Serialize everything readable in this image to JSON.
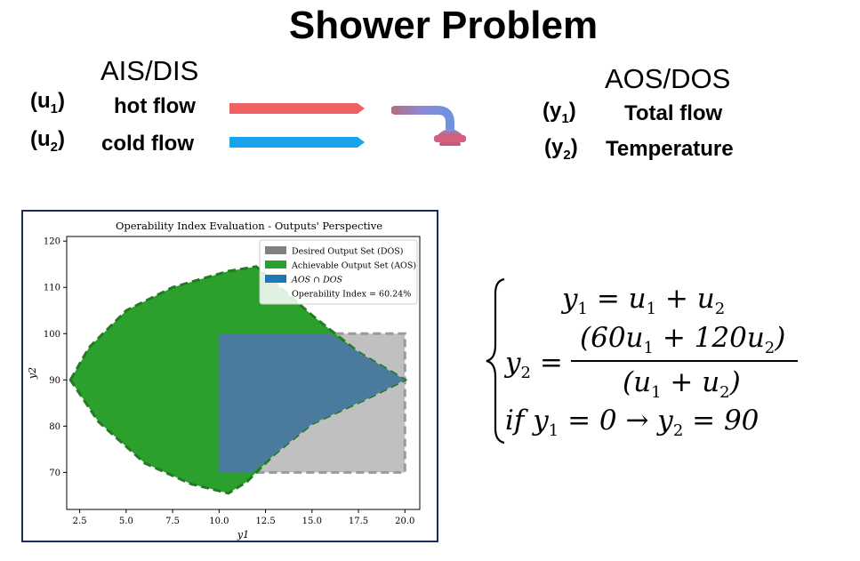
{
  "title": "Shower Problem",
  "inputs": {
    "header": "AIS/DIS",
    "items": [
      {
        "var": "(u1)",
        "var_base": "(u",
        "var_sub": "1",
        "var_close": ")",
        "label": "hot flow",
        "color": "#f06060"
      },
      {
        "var": "(u2)",
        "var_base": "(u",
        "var_sub": "2",
        "var_close": ")",
        "label": "cold flow",
        "color": "#1aa3ea"
      }
    ]
  },
  "outputs": {
    "header": "AOS/DOS",
    "items": [
      {
        "var": "(y1)",
        "var_base": "(y",
        "var_sub": "1",
        "var_close": ")",
        "label": "Total flow"
      },
      {
        "var": "(y2)",
        "var_base": "(y",
        "var_sub": "2",
        "var_close": ")",
        "label": "Temperature"
      }
    ]
  },
  "shower_icon": "shower-head-icon",
  "chart_data": {
    "type": "area",
    "title": "Operability Index Evaluation - Outputs' Perspective",
    "xlabel": "y1",
    "ylabel": "y2",
    "xlim": [
      1.8,
      20.8
    ],
    "ylim": [
      62,
      121
    ],
    "xticks": [
      "2.5",
      "5.0",
      "7.5",
      "10.0",
      "12.5",
      "15.0",
      "17.5",
      "20.0"
    ],
    "yticks": [
      "70",
      "80",
      "90",
      "100",
      "110",
      "120"
    ],
    "legend_position": "top-right",
    "legend": [
      {
        "label": "Desired Output Set (DOS)",
        "color": "#808080"
      },
      {
        "label": "Achievable Output Set (AOS)",
        "color": "#2ca02c"
      },
      {
        "label": "AOS ∩ DOS",
        "color": "#1f77b4"
      },
      {
        "label": "Operability Index = 60.24%",
        "color": null
      }
    ],
    "series": [
      {
        "name": "Desired Output Set (DOS)",
        "color": "#c0c0c0",
        "edge_color": "#9a9a9a",
        "points": [
          [
            10,
            70
          ],
          [
            20,
            70
          ],
          [
            20,
            100
          ],
          [
            10,
            100
          ]
        ]
      },
      {
        "name": "Achievable Output Set (AOS)",
        "color": "#2ca02c",
        "edge_color": "#237a23",
        "points": [
          [
            2,
            90
          ],
          [
            3,
            97
          ],
          [
            5,
            105
          ],
          [
            7.5,
            110
          ],
          [
            10.5,
            113.5
          ],
          [
            12,
            114.5
          ],
          [
            13,
            111
          ],
          [
            15,
            104
          ],
          [
            17.5,
            96
          ],
          [
            20,
            90
          ],
          [
            18,
            86
          ],
          [
            15,
            80.5
          ],
          [
            13,
            74
          ],
          [
            11.5,
            68
          ],
          [
            10.5,
            65.5
          ],
          [
            8.5,
            67.5
          ],
          [
            6,
            72
          ],
          [
            3.5,
            81
          ],
          [
            2,
            90
          ]
        ]
      },
      {
        "name": "AOS ∩ DOS",
        "color": "#4a7a9e",
        "points": [
          [
            10,
            70
          ],
          [
            11.8,
            70
          ],
          [
            13,
            74
          ],
          [
            15,
            80.5
          ],
          [
            18,
            86
          ],
          [
            20,
            90
          ],
          [
            17.5,
            96
          ],
          [
            16,
            100
          ],
          [
            10,
            100
          ]
        ]
      }
    ]
  },
  "equations": {
    "eq1_lhs": "y",
    "eq1_sub": "1",
    "eq1_rhs": " = u",
    "eq1_sub2": "1",
    "eq1_plus": " + u",
    "eq1_sub3": "2",
    "eq2_lhs": "y",
    "eq2_sub": "2",
    "eq2_eq": " = ",
    "eq2_num": "(60u",
    "eq2_num_sub1": "1",
    "eq2_num_mid": " + 120u",
    "eq2_num_sub2": "2",
    "eq2_num_end": ")",
    "eq2_den": "(u",
    "eq2_den_sub1": "1",
    "eq2_den_mid": " + u",
    "eq2_den_sub2": "2",
    "eq2_den_end": ")",
    "eq3_if": "if  y",
    "eq3_sub": "1",
    "eq3_mid": " = 0  → y",
    "eq3_sub2": "2",
    "eq3_end": " = 90"
  }
}
